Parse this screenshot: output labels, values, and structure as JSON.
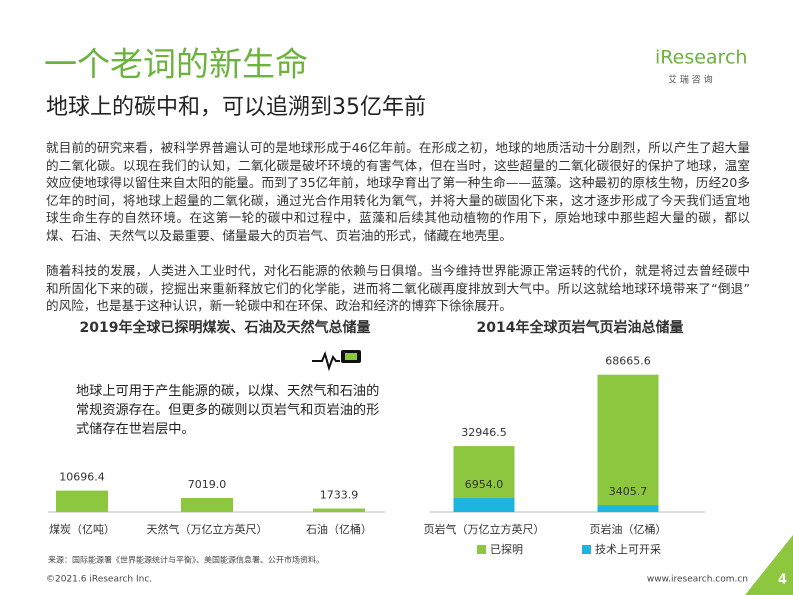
{
  "header": {
    "title": "一个老词的新生命",
    "subtitle": "地球上的碳中和，可以追溯到35亿年前",
    "logo": "iResearch",
    "logo_cn": "艾 瑞 咨 询"
  },
  "body": {
    "paragraphs": [
      "就目前的研究来看，被科学界普遍认可的是地球形成于46亿年前。在形成之初，地球的地质活动十分剧烈，所以产生了超大量的二氧化碳。以现在我们的认知，二氧化碳是破坏环境的有害气体，但在当时，这些超量的二氧化碳很好的保护了地球，温室效应使地球得以留住来自太阳的能量。而到了35亿年前，地球孕育出了第一种生命——蓝藻。这种最初的原核生物，历经20多亿年的时间，将地球上超量的二氧化碳，通过光合作用转化为氧气，并将大量的碳固化下来，这才逐步形成了今天我们适宜地球生命生存的自然环境。在这第一轮的碳中和过程中，蓝藻和后续其他动植物的作用下，原始地球中那些超大量的碳，都以煤、石油、天然气以及最重要、储量最大的页岩气、页岩油的形式，储藏在地壳里。",
      "随着科技的发展，人类进入工业时代，对化石能源的依赖与日俱增。当今维持世界能源正常运转的代价，就是将过去曾经碳中和所固化下来的碳，挖掘出来重新释放它们的化学能，进而将二氧化碳再度排放到大气中。所以这就给地球环境带来了“倒退”的风险，也是基于这种认识，新一轮碳中和在环保、政治和经济的博弈下徐徐展开。"
    ]
  },
  "chart_data": [
    {
      "type": "bar",
      "title": "2019年全球已探明煤炭、石油及天然气总储量",
      "annotation": "地球上可用于产生能源的碳，以煤、天然气和石油的常规资源存在。但更多的碳则以页岩气和页岩油的形式储存在世岩层中。",
      "categories": [
        "煤炭（亿吨）",
        "天然气（万亿立方英尺）",
        "石油（亿桶）"
      ],
      "values": [
        10696.4,
        7019.0,
        1733.9
      ],
      "value_labels": [
        "10696.4",
        "7019.0",
        "1733.9"
      ],
      "color": "#8dc63f"
    },
    {
      "type": "bar",
      "title": "2014年全球页岩气页岩油总储量",
      "categories": [
        "页岩气（万亿立方英尺）",
        "页岩油（亿桶）"
      ],
      "series": [
        {
          "name": "已探明",
          "color": "#8dc63f",
          "values": [
            32946.5,
            68665.6
          ],
          "value_labels": [
            "32946.5",
            "68665.6"
          ]
        },
        {
          "name": "技术上可开采",
          "color": "#1eb4e0",
          "values": [
            6954.0,
            3405.7
          ],
          "value_labels": [
            "6954.0",
            "3405.7"
          ]
        }
      ]
    }
  ],
  "footer": {
    "source": "来源：国际能源署《世界能源统计与平衡》、美国能源信息署、公开市场资料。",
    "copyright": "©2021.6 iResearch Inc.",
    "website": "www.iresearch.com.cn",
    "page": 4
  }
}
